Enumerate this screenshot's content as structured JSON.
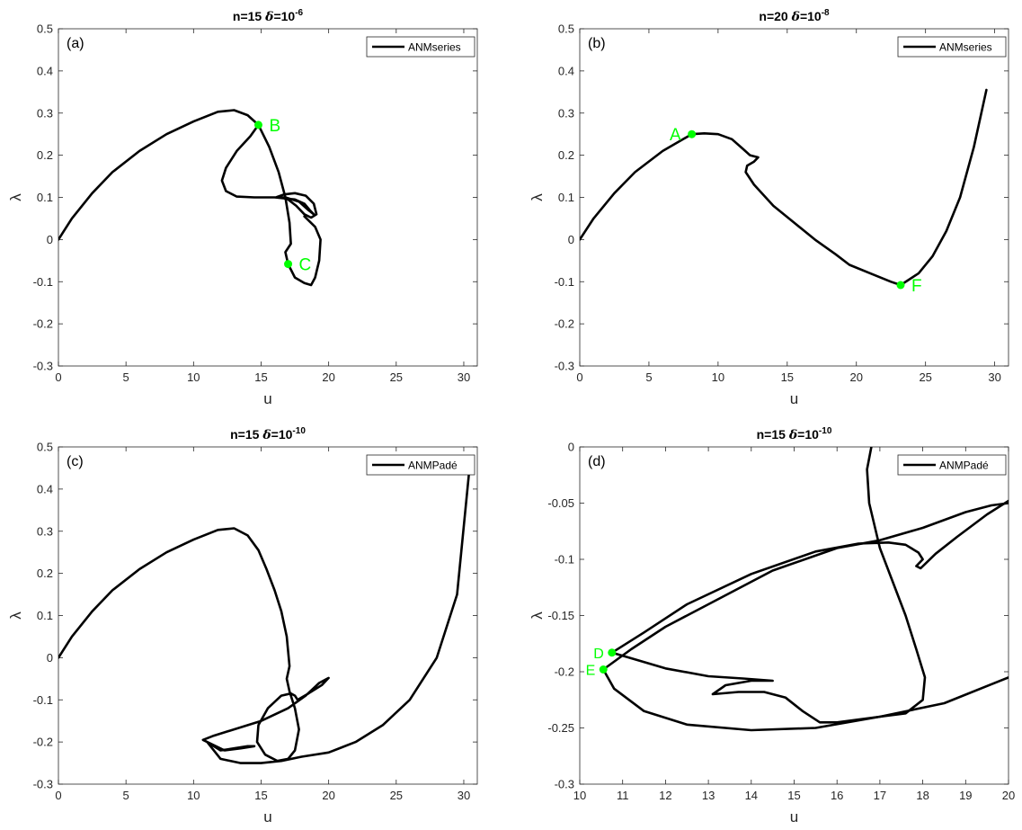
{
  "colors": {
    "curve": "#000000",
    "marker": "#00ff00",
    "axes": "#262626"
  },
  "chart_data": [
    {
      "id": "a",
      "type": "line",
      "panel_tag": "(a)",
      "title": {
        "n": "n=15",
        "delta_symbol": "δ",
        "delta_base": "=10",
        "delta_exp": "-6"
      },
      "xlabel": "u",
      "ylabel": "λ",
      "xlim": [
        0,
        31
      ],
      "ylim": [
        -0.3,
        0.5
      ],
      "xticks": [
        0,
        5,
        10,
        15,
        20,
        25,
        30
      ],
      "yticks": [
        -0.3,
        -0.2,
        -0.1,
        0,
        0.1,
        0.2,
        0.3,
        0.4,
        0.5
      ],
      "ytick_labels": [
        "-0.3",
        "-0.2",
        "-0.1",
        "0",
        "0.1",
        "0.2",
        "0.3",
        "0.4",
        "0.5"
      ],
      "legend": {
        "label": "ANMseries",
        "placement": "top-right"
      },
      "grid": false,
      "series": [
        {
          "points": [
            [
              0,
              0
            ],
            [
              1,
              0.05
            ],
            [
              2.5,
              0.11
            ],
            [
              4,
              0.16
            ],
            [
              6,
              0.21
            ],
            [
              8,
              0.25
            ],
            [
              10,
              0.28
            ],
            [
              11.8,
              0.303
            ],
            [
              13,
              0.307
            ],
            [
              14,
              0.295
            ],
            [
              14.8,
              0.272
            ],
            [
              14.2,
              0.245
            ],
            [
              13.2,
              0.21
            ],
            [
              12.4,
              0.17
            ],
            [
              12.1,
              0.14
            ],
            [
              12.4,
              0.115
            ],
            [
              13.2,
              0.102
            ],
            [
              14.5,
              0.1
            ],
            [
              16,
              0.1
            ],
            [
              17.5,
              0.095
            ],
            [
              18.2,
              0.085
            ],
            [
              18.6,
              0.07
            ],
            [
              18.9,
              0.06
            ],
            [
              18.5,
              0.07
            ],
            [
              17.8,
              0.09
            ],
            [
              16.8,
              0.1
            ],
            [
              16.1,
              0.1
            ],
            [
              16.7,
              0.107
            ],
            [
              17.5,
              0.11
            ],
            [
              18.3,
              0.104
            ],
            [
              18.9,
              0.085
            ],
            [
              19.1,
              0.06
            ],
            [
              18.7,
              0.052
            ],
            [
              18.2,
              0.06
            ],
            [
              17.6,
              0.08
            ],
            [
              17,
              0.095
            ],
            [
              16.4,
              0.1
            ]
          ]
        },
        {
          "points": [
            [
              14.8,
              0.272
            ],
            [
              15.6,
              0.22
            ],
            [
              16.3,
              0.16
            ],
            [
              16.8,
              0.1
            ],
            [
              17.1,
              0.04
            ],
            [
              17.2,
              -0.01
            ],
            [
              16.8,
              -0.03
            ],
            [
              17,
              -0.058
            ],
            [
              17.5,
              -0.09
            ],
            [
              18.2,
              -0.103
            ],
            [
              18.7,
              -0.108
            ],
            [
              19,
              -0.09
            ],
            [
              19.3,
              -0.05
            ],
            [
              19.4,
              0
            ],
            [
              19,
              0.03
            ],
            [
              18.2,
              0.055
            ]
          ]
        }
      ],
      "markers": [
        {
          "label": "B",
          "x": 14.8,
          "y": 0.272,
          "label_side": "right"
        },
        {
          "label": "C",
          "x": 17.0,
          "y": -0.058,
          "label_side": "right"
        }
      ]
    },
    {
      "id": "b",
      "type": "line",
      "panel_tag": "(b)",
      "title": {
        "n": "n=20",
        "delta_symbol": "δ",
        "delta_base": "=10",
        "delta_exp": "-8"
      },
      "xlabel": "u",
      "ylabel": "λ",
      "xlim": [
        0,
        31
      ],
      "ylim": [
        -0.3,
        0.5
      ],
      "xticks": [
        0,
        5,
        10,
        15,
        20,
        25,
        30
      ],
      "yticks": [
        -0.3,
        -0.2,
        -0.1,
        0,
        0.1,
        0.2,
        0.3,
        0.4,
        0.5
      ],
      "ytick_labels": [
        "-0.3",
        "-0.2",
        "-0.1",
        "0",
        "0.1",
        "0.2",
        "0.3",
        "0.4",
        "0.5"
      ],
      "legend": {
        "label": "ANMseries",
        "placement": "top-right"
      },
      "grid": false,
      "series": [
        {
          "points": [
            [
              0,
              0
            ],
            [
              1,
              0.05
            ],
            [
              2.5,
              0.11
            ],
            [
              4,
              0.16
            ],
            [
              6,
              0.21
            ],
            [
              8.1,
              0.25
            ],
            [
              9,
              0.252
            ],
            [
              10,
              0.25
            ],
            [
              11,
              0.238
            ],
            [
              11.8,
              0.215
            ],
            [
              12.3,
              0.2
            ],
            [
              12.9,
              0.195
            ],
            [
              12.6,
              0.185
            ],
            [
              12.1,
              0.175
            ],
            [
              12,
              0.16
            ],
            [
              12.6,
              0.13
            ],
            [
              14,
              0.08
            ],
            [
              15.5,
              0.04
            ],
            [
              17,
              0
            ],
            [
              18.5,
              -0.035
            ],
            [
              19.5,
              -0.06
            ],
            [
              21,
              -0.08
            ],
            [
              22.5,
              -0.1
            ],
            [
              23.2,
              -0.108
            ],
            [
              24.5,
              -0.08
            ],
            [
              25.5,
              -0.04
            ],
            [
              26.5,
              0.02
            ],
            [
              27.5,
              0.1
            ],
            [
              28.5,
              0.22
            ],
            [
              29.4,
              0.355
            ]
          ]
        }
      ],
      "markers": [
        {
          "label": "A",
          "x": 8.1,
          "y": 0.25,
          "label_side": "left"
        },
        {
          "label": "F",
          "x": 23.2,
          "y": -0.108,
          "label_side": "right"
        }
      ]
    },
    {
      "id": "c",
      "type": "line",
      "panel_tag": "(c)",
      "title": {
        "n": "n=15",
        "delta_symbol": "δ",
        "delta_base": "=10",
        "delta_exp": "-10"
      },
      "xlabel": "u",
      "ylabel": "λ",
      "xlim": [
        0,
        31
      ],
      "ylim": [
        -0.3,
        0.5
      ],
      "xticks": [
        0,
        5,
        10,
        15,
        20,
        25,
        30
      ],
      "yticks": [
        -0.3,
        -0.2,
        -0.1,
        0,
        0.1,
        0.2,
        0.3,
        0.4,
        0.5
      ],
      "ytick_labels": [
        "-0.3",
        "-0.2",
        "-0.1",
        "0",
        "0.1",
        "0.2",
        "0.3",
        "0.4",
        "0.5"
      ],
      "legend": {
        "label": "ANMPadé",
        "placement": "top-right"
      },
      "grid": false,
      "series": [
        {
          "points": [
            [
              0,
              0
            ],
            [
              1,
              0.05
            ],
            [
              2.5,
              0.11
            ],
            [
              4,
              0.16
            ],
            [
              6,
              0.21
            ],
            [
              8,
              0.25
            ],
            [
              10,
              0.28
            ],
            [
              11.8,
              0.303
            ],
            [
              13,
              0.307
            ],
            [
              14,
              0.29
            ],
            [
              14.8,
              0.255
            ],
            [
              15.4,
              0.21
            ],
            [
              16,
              0.16
            ],
            [
              16.5,
              0.11
            ],
            [
              16.9,
              0.05
            ],
            [
              17.1,
              -0.02
            ],
            [
              16.9,
              -0.05
            ],
            [
              17.1,
              -0.08
            ],
            [
              17.5,
              -0.12
            ],
            [
              17.8,
              -0.17
            ],
            [
              17.5,
              -0.22
            ],
            [
              17,
              -0.24
            ],
            [
              16.2,
              -0.245
            ],
            [
              15.3,
              -0.23
            ],
            [
              14.7,
              -0.2
            ],
            [
              14.8,
              -0.16
            ],
            [
              15.5,
              -0.12
            ],
            [
              16.5,
              -0.09
            ],
            [
              17.2,
              -0.085
            ],
            [
              17.5,
              -0.09
            ],
            [
              17.7,
              -0.1
            ],
            [
              18.5,
              -0.085
            ],
            [
              19.5,
              -0.065
            ],
            [
              20,
              -0.048
            ],
            [
              19.3,
              -0.06
            ],
            [
              18.3,
              -0.09
            ],
            [
              17,
              -0.12
            ],
            [
              15,
              -0.15
            ],
            [
              13,
              -0.17
            ],
            [
              11.5,
              -0.185
            ],
            [
              10.7,
              -0.195
            ],
            [
              11,
              -0.2
            ],
            [
              12,
              -0.22
            ],
            [
              13,
              -0.215
            ],
            [
              14,
              -0.21
            ],
            [
              14.5,
              -0.21
            ],
            [
              13.5,
              -0.215
            ],
            [
              12.3,
              -0.22
            ],
            [
              11,
              -0.2
            ],
            [
              12,
              -0.24
            ],
            [
              13.5,
              -0.25
            ],
            [
              15,
              -0.25
            ],
            [
              16.5,
              -0.245
            ],
            [
              18,
              -0.235
            ],
            [
              20,
              -0.225
            ],
            [
              22,
              -0.2
            ],
            [
              24,
              -0.16
            ],
            [
              26,
              -0.1
            ],
            [
              28,
              0
            ],
            [
              29.5,
              0.15
            ],
            [
              30.5,
              0.475
            ]
          ]
        }
      ],
      "markers": []
    },
    {
      "id": "d",
      "type": "line",
      "panel_tag": "(d)",
      "title": {
        "n": "n=15",
        "delta_symbol": "δ",
        "delta_base": "=10",
        "delta_exp": "-10"
      },
      "xlabel": "u",
      "ylabel": "λ",
      "xlim": [
        10,
        20
      ],
      "ylim": [
        -0.3,
        0
      ],
      "xticks": [
        10,
        11,
        12,
        13,
        14,
        15,
        16,
        17,
        18,
        19,
        20
      ],
      "yticks": [
        -0.3,
        -0.25,
        -0.2,
        -0.15,
        -0.1,
        -0.05,
        0
      ],
      "ytick_labels": [
        "-0.3",
        "-0.25",
        "-0.2",
        "-0.15",
        "-0.1",
        "-0.05",
        "0"
      ],
      "legend": {
        "label": "ANMPadé",
        "placement": "top-right"
      },
      "grid": false,
      "series": [
        {
          "points": [
            [
              16.8,
              0
            ],
            [
              16.7,
              -0.02
            ],
            [
              16.75,
              -0.05
            ],
            [
              17.0,
              -0.09
            ],
            [
              17.3,
              -0.12
            ],
            [
              17.6,
              -0.15
            ],
            [
              17.85,
              -0.18
            ],
            [
              18.05,
              -0.205
            ],
            [
              18.0,
              -0.225
            ],
            [
              17.6,
              -0.237
            ],
            [
              17,
              -0.24
            ],
            [
              16,
              -0.245
            ],
            [
              15.6,
              -0.245
            ],
            [
              15.2,
              -0.235
            ],
            [
              14.8,
              -0.223
            ],
            [
              14.3,
              -0.218
            ],
            [
              13.7,
              -0.218
            ],
            [
              13.1,
              -0.22
            ],
            [
              13.4,
              -0.212
            ],
            [
              14,
              -0.208
            ],
            [
              14.5,
              -0.208
            ],
            [
              13.8,
              -0.206
            ],
            [
              13,
              -0.204
            ],
            [
              12,
              -0.197
            ],
            [
              11.2,
              -0.188
            ],
            [
              10.75,
              -0.183
            ],
            [
              11.5,
              -0.165
            ],
            [
              12.5,
              -0.14
            ],
            [
              14,
              -0.113
            ],
            [
              15.5,
              -0.093
            ],
            [
              16.5,
              -0.086
            ],
            [
              17.2,
              -0.085
            ],
            [
              17.6,
              -0.087
            ],
            [
              17.9,
              -0.094
            ],
            [
              18,
              -0.1
            ],
            [
              17.85,
              -0.106
            ],
            [
              17.95,
              -0.108
            ],
            [
              18.3,
              -0.095
            ],
            [
              18.8,
              -0.08
            ],
            [
              19.5,
              -0.06
            ],
            [
              20,
              -0.048
            ]
          ]
        },
        {
          "points": [
            [
              20,
              -0.05
            ],
            [
              19.6,
              -0.052
            ],
            [
              19,
              -0.058
            ],
            [
              18,
              -0.072
            ],
            [
              17,
              -0.083
            ],
            [
              16,
              -0.09
            ],
            [
              14.5,
              -0.11
            ],
            [
              13,
              -0.14
            ],
            [
              12,
              -0.16
            ],
            [
              11.2,
              -0.18
            ],
            [
              10.55,
              -0.198
            ],
            [
              10.8,
              -0.215
            ],
            [
              11.5,
              -0.235
            ],
            [
              12.5,
              -0.247
            ],
            [
              14,
              -0.252
            ],
            [
              15.5,
              -0.25
            ],
            [
              17,
              -0.24
            ],
            [
              18.5,
              -0.228
            ],
            [
              20,
              -0.205
            ]
          ]
        }
      ],
      "markers": [
        {
          "label": "D",
          "x": 10.75,
          "y": -0.183,
          "label_side": "left"
        },
        {
          "label": "E",
          "x": 10.55,
          "y": -0.198,
          "label_side": "left"
        }
      ]
    }
  ]
}
